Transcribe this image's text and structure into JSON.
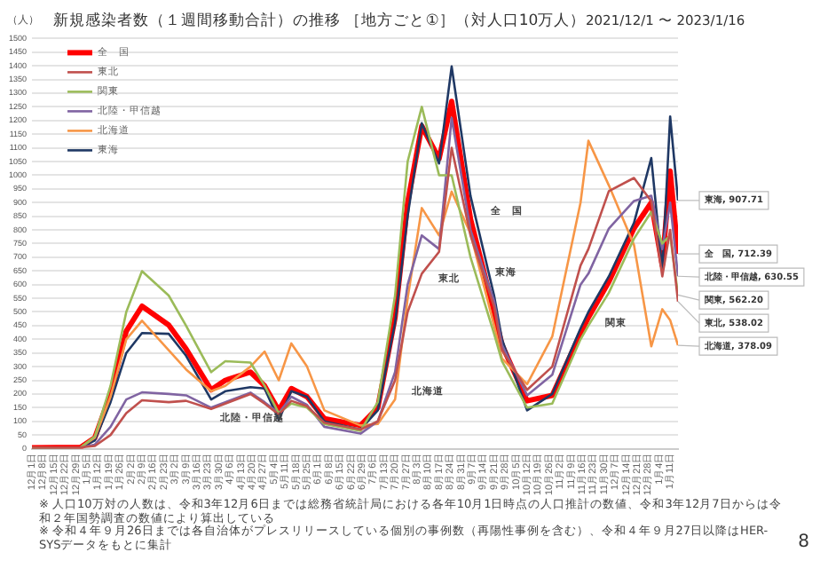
{
  "chart_data": {
    "type": "line",
    "title": "新規感染者数（１週間移動合計）の推移 ［地方ごと①］（対人口10万人）",
    "subtitle": "2021/12/1 〜 2023/1/16",
    "ylabel": "（人）",
    "x": [
      "2021-12-01",
      "2022-01-01",
      "2022-01-10",
      "2022-01-20",
      "2022-01-30",
      "2022-02-09",
      "2022-02-26",
      "2022-03-09",
      "2022-03-25",
      "2022-04-03",
      "2022-04-19",
      "2022-04-28",
      "2022-05-07",
      "2022-05-15",
      "2022-05-25",
      "2022-06-05",
      "2022-06-28",
      "2022-07-09",
      "2022-07-20",
      "2022-07-28",
      "2022-08-06",
      "2022-08-17",
      "2022-08-25",
      "2022-09-06",
      "2022-09-21",
      "2022-09-26",
      "2022-10-12",
      "2022-10-28",
      "2022-11-15",
      "2022-11-20",
      "2022-12-03",
      "2022-12-19",
      "2022-12-30",
      "2023-01-06",
      "2023-01-11",
      "2023-01-16"
    ],
    "series": [
      {
        "name": "全　国",
        "color": "#ff0000",
        "values": [
          3,
          5,
          40,
          200,
          430,
          521,
          452,
          365,
          215,
          250,
          280,
          230,
          140,
          220,
          190,
          110,
          85,
          150,
          480,
          900,
          1180,
          1060,
          1270,
          840,
          500,
          380,
          175,
          195,
          422,
          480,
          610,
          806,
          900,
          670,
          1015,
          712.39
        ]
      },
      {
        "name": "東北",
        "color": "#c0504d",
        "values": [
          3,
          5,
          10,
          50,
          130,
          177,
          170,
          175,
          145,
          165,
          200,
          165,
          125,
          175,
          155,
          95,
          70,
          100,
          250,
          500,
          640,
          720,
          1100,
          780,
          520,
          360,
          215,
          300,
          670,
          730,
          942,
          990,
          905,
          630,
          800,
          538.02
        ]
      },
      {
        "name": "関東",
        "color": "#9bbb59",
        "values": [
          3,
          5,
          45,
          230,
          500,
          649,
          560,
          450,
          280,
          320,
          315,
          230,
          130,
          165,
          150,
          90,
          65,
          170,
          560,
          1050,
          1250,
          1000,
          1000,
          700,
          420,
          320,
          150,
          165,
          400,
          450,
          570,
          768,
          866,
          750,
          780,
          562.2
        ]
      },
      {
        "name": "北陸・甲信越",
        "color": "#8064a2",
        "values": [
          3,
          5,
          15,
          80,
          180,
          206,
          200,
          195,
          150,
          170,
          205,
          170,
          130,
          190,
          160,
          80,
          55,
          100,
          280,
          600,
          780,
          730,
          1210,
          800,
          540,
          380,
          195,
          270,
          600,
          640,
          805,
          906,
          925,
          730,
          900,
          630.55
        ]
      },
      {
        "name": "北海道",
        "color": "#f79646",
        "values": [
          3,
          5,
          40,
          190,
          400,
          468,
          360,
          290,
          210,
          230,
          300,
          355,
          250,
          385,
          300,
          140,
          85,
          90,
          180,
          550,
          880,
          780,
          940,
          787,
          450,
          330,
          236,
          410,
          900,
          1126,
          963,
          745,
          374,
          510,
          470,
          378.09
        ]
      },
      {
        "name": "東海",
        "color": "#1f3864",
        "values": [
          3,
          5,
          30,
          170,
          350,
          423,
          420,
          340,
          180,
          210,
          225,
          220,
          105,
          210,
          190,
          100,
          70,
          140,
          460,
          850,
          1190,
          1043,
          1398,
          924,
          560,
          400,
          140,
          200,
          440,
          500,
          630,
          826,
          1063,
          650,
          1215,
          907.71
        ]
      }
    ],
    "ylim": [
      0,
      1500
    ],
    "yticks": [
      0,
      50,
      100,
      150,
      200,
      250,
      300,
      350,
      400,
      450,
      500,
      550,
      600,
      650,
      700,
      750,
      800,
      850,
      900,
      950,
      1000,
      1050,
      1100,
      1150,
      1200,
      1250,
      1300,
      1350,
      1400,
      1450,
      1500
    ],
    "xlim": [
      "2021-12-01",
      "2023-01-16"
    ],
    "xticks": [
      {
        "value": "2021-12-01",
        "label": "12月1日"
      },
      {
        "value": "2021-12-08",
        "label": "12月8日"
      },
      {
        "value": "2021-12-15",
        "label": "12月15日"
      },
      {
        "value": "2021-12-22",
        "label": "12月22日"
      },
      {
        "value": "2021-12-29",
        "label": "12月29日"
      },
      {
        "value": "2022-01-05",
        "label": "1月5日"
      },
      {
        "value": "2022-01-12",
        "label": "1月12日"
      },
      {
        "value": "2022-01-19",
        "label": "1月19日"
      },
      {
        "value": "2022-01-26",
        "label": "1月26日"
      },
      {
        "value": "2022-02-02",
        "label": "2月2日"
      },
      {
        "value": "2022-02-09",
        "label": "2月9日"
      },
      {
        "value": "2022-02-16",
        "label": "2月16日"
      },
      {
        "value": "2022-02-23",
        "label": "2月23日"
      },
      {
        "value": "2022-03-02",
        "label": "3月2日"
      },
      {
        "value": "2022-03-09",
        "label": "3月9日"
      },
      {
        "value": "2022-03-16",
        "label": "3月16日"
      },
      {
        "value": "2022-03-23",
        "label": "3月23日"
      },
      {
        "value": "2022-03-30",
        "label": "3月30日"
      },
      {
        "value": "2022-04-06",
        "label": "4月6日"
      },
      {
        "value": "2022-04-13",
        "label": "4月13日"
      },
      {
        "value": "2022-04-20",
        "label": "4月20日"
      },
      {
        "value": "2022-04-27",
        "label": "4月27日"
      },
      {
        "value": "2022-05-04",
        "label": "5月4日"
      },
      {
        "value": "2022-05-11",
        "label": "5月11日"
      },
      {
        "value": "2022-05-18",
        "label": "5月18日"
      },
      {
        "value": "2022-05-25",
        "label": "5月25日"
      },
      {
        "value": "2022-06-01",
        "label": "6月1日"
      },
      {
        "value": "2022-06-08",
        "label": "6月8日"
      },
      {
        "value": "2022-06-15",
        "label": "6月15日"
      },
      {
        "value": "2022-06-22",
        "label": "6月22日"
      },
      {
        "value": "2022-06-29",
        "label": "6月29日"
      },
      {
        "value": "2022-07-06",
        "label": "7月6日"
      },
      {
        "value": "2022-07-13",
        "label": "7月13日"
      },
      {
        "value": "2022-07-20",
        "label": "7月20日"
      },
      {
        "value": "2022-07-27",
        "label": "7月27日"
      },
      {
        "value": "2022-08-03",
        "label": "8月3日"
      },
      {
        "value": "2022-08-10",
        "label": "8月10日"
      },
      {
        "value": "2022-08-17",
        "label": "8月17日"
      },
      {
        "value": "2022-08-24",
        "label": "8月24日"
      },
      {
        "value": "2022-08-31",
        "label": "8月31日"
      },
      {
        "value": "2022-09-07",
        "label": "9月7日"
      },
      {
        "value": "2022-09-14",
        "label": "9月14日"
      },
      {
        "value": "2022-09-21",
        "label": "9月21日"
      },
      {
        "value": "2022-09-28",
        "label": "9月28日"
      },
      {
        "value": "2022-10-05",
        "label": "10月5日"
      },
      {
        "value": "2022-10-12",
        "label": "10月12日"
      },
      {
        "value": "2022-10-19",
        "label": "10月19日"
      },
      {
        "value": "2022-10-26",
        "label": "10月26日"
      },
      {
        "value": "2022-11-02",
        "label": "11月2日"
      },
      {
        "value": "2022-11-09",
        "label": "11月9日"
      },
      {
        "value": "2022-11-16",
        "label": "11月16日"
      },
      {
        "value": "2022-11-23",
        "label": "11月23日"
      },
      {
        "value": "2022-11-30",
        "label": "11月30日"
      },
      {
        "value": "2022-12-07",
        "label": "12月7日"
      },
      {
        "value": "2022-12-14",
        "label": "12月14日"
      },
      {
        "value": "2022-12-21",
        "label": "12月21日"
      },
      {
        "value": "2022-12-28",
        "label": "12月28日"
      },
      {
        "value": "2023-01-04",
        "label": "1月4日"
      },
      {
        "value": "2023-01-11",
        "label": "1月11日"
      }
    ],
    "grid": "y",
    "legend": "top left",
    "marker": "none",
    "line_style": "solid",
    "annotations": [
      {
        "text": "全　国",
        "x": "2022-09-13",
        "y": 906
      },
      {
        "text": "東北",
        "x": "2022-08-11",
        "y": 658
      },
      {
        "text": "東海",
        "x": "2022-09-16",
        "y": 680
      },
      {
        "text": "関東",
        "x": "2022-11-25",
        "y": 495
      },
      {
        "text": "北海道",
        "x": "2022-07-25",
        "y": 246
      },
      {
        "text": "北陸・甲信越",
        "x": "2022-03-25",
        "y": 150
      },
      {
        "text": "東海, 907.71",
        "x": "2023-01-16",
        "y": 907.71
      },
      {
        "text": "全　国, 712.39",
        "x": "2023-01-16",
        "y": 712.39
      },
      {
        "text": "北陸・甲信越, 630.55",
        "x": "2023-01-16",
        "y": 630.55
      },
      {
        "text": "関東, 562.20",
        "x": "2023-01-16",
        "y": 562.2
      },
      {
        "text": "東北, 538.02",
        "x": "2023-01-16",
        "y": 538.02
      },
      {
        "text": "北海道, 378.09",
        "x": "2023-01-16",
        "y": 378.09
      },
      "※ 人口10万対の人数は、令和3年12月6日までは総務省統計局における各年10月1日時点の人口推計の数値、令和3年12月7日からは令和２年国勢調査の数値により算出している",
      "※ 令和４年９月26日までは各自治体がプレスリリースしている個別の事例数（再陽性事例を含む）、令和４年９月27日以降はHER-SYSデータをもとに集計",
      "8"
    ]
  }
}
